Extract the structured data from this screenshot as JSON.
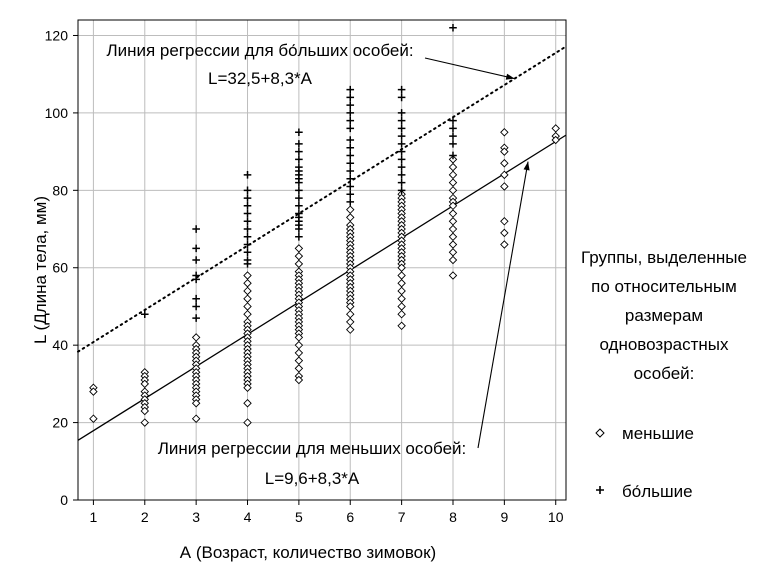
{
  "chart_data": {
    "type": "scatter",
    "xlabel": "А  (Возраст, количество зимовок)",
    "ylabel": "L (Длина тела, мм)",
    "x_ticks": [
      1,
      2,
      3,
      4,
      5,
      6,
      7,
      8,
      9,
      10
    ],
    "y_ticks": [
      0,
      20,
      40,
      60,
      80,
      100,
      120
    ],
    "xlim": [
      0.7,
      10.2
    ],
    "ylim": [
      0,
      124
    ],
    "grid": true,
    "legend": {
      "position": "right",
      "title_lines": [
        "Группы, выделенные",
        "по относительным",
        "размерам",
        "одновозрастных",
        "особей:"
      ],
      "items": [
        {
          "symbol": "diamond",
          "label": "меньшие"
        },
        {
          "symbol": "plus",
          "label": "бо́льшие"
        }
      ]
    },
    "regression_lines": [
      {
        "group": "бо́льшие",
        "intercept": 32.5,
        "slope": 8.3,
        "style": "dotted"
      },
      {
        "group": "меньшие",
        "intercept": 9.6,
        "slope": 8.3,
        "style": "solid"
      }
    ],
    "annotations": [
      {
        "lines": [
          "Линия регрессии для бо́льших особей:",
          "L=32,5+8,3*A"
        ],
        "points_to_x": 9.2
      },
      {
        "lines": [
          "Линия регрессии для меньших особей:",
          "L=9,6+8,3*A"
        ],
        "points_to_x": 9.5
      }
    ],
    "series": [
      {
        "name": "меньшие",
        "symbol": "diamond",
        "points": [
          [
            1,
            29
          ],
          [
            1,
            28
          ],
          [
            1,
            21
          ],
          [
            2,
            33
          ],
          [
            2,
            32
          ],
          [
            2,
            31
          ],
          [
            2,
            30
          ],
          [
            2,
            28
          ],
          [
            2,
            27
          ],
          [
            2,
            26
          ],
          [
            2,
            25
          ],
          [
            2,
            24
          ],
          [
            2,
            23
          ],
          [
            2,
            20
          ],
          [
            3,
            42
          ],
          [
            3,
            40
          ],
          [
            3,
            39
          ],
          [
            3,
            38
          ],
          [
            3,
            37
          ],
          [
            3,
            36
          ],
          [
            3,
            35
          ],
          [
            3,
            34
          ],
          [
            3,
            33
          ],
          [
            3,
            32
          ],
          [
            3,
            31
          ],
          [
            3,
            30
          ],
          [
            3,
            29
          ],
          [
            3,
            28
          ],
          [
            3,
            27
          ],
          [
            3,
            26
          ],
          [
            3,
            25
          ],
          [
            3,
            21
          ],
          [
            4,
            58
          ],
          [
            4,
            56
          ],
          [
            4,
            54
          ],
          [
            4,
            52
          ],
          [
            4,
            50
          ],
          [
            4,
            48
          ],
          [
            4,
            46
          ],
          [
            4,
            45
          ],
          [
            4,
            44
          ],
          [
            4,
            43
          ],
          [
            4,
            42
          ],
          [
            4,
            41
          ],
          [
            4,
            40
          ],
          [
            4,
            39
          ],
          [
            4,
            38
          ],
          [
            4,
            37
          ],
          [
            4,
            36
          ],
          [
            4,
            35
          ],
          [
            4,
            34
          ],
          [
            4,
            33
          ],
          [
            4,
            32
          ],
          [
            4,
            31
          ],
          [
            4,
            30
          ],
          [
            4,
            29
          ],
          [
            4,
            25
          ],
          [
            4,
            20
          ],
          [
            5,
            65
          ],
          [
            5,
            63
          ],
          [
            5,
            61
          ],
          [
            5,
            59
          ],
          [
            5,
            58
          ],
          [
            5,
            57
          ],
          [
            5,
            56
          ],
          [
            5,
            55
          ],
          [
            5,
            54
          ],
          [
            5,
            53
          ],
          [
            5,
            52
          ],
          [
            5,
            51
          ],
          [
            5,
            50
          ],
          [
            5,
            49
          ],
          [
            5,
            48
          ],
          [
            5,
            47
          ],
          [
            5,
            46
          ],
          [
            5,
            45
          ],
          [
            5,
            44
          ],
          [
            5,
            43
          ],
          [
            5,
            42
          ],
          [
            5,
            40
          ],
          [
            5,
            38
          ],
          [
            5,
            36
          ],
          [
            5,
            34
          ],
          [
            5,
            32
          ],
          [
            5,
            31
          ],
          [
            6,
            75
          ],
          [
            6,
            73
          ],
          [
            6,
            71
          ],
          [
            6,
            70
          ],
          [
            6,
            69
          ],
          [
            6,
            68
          ],
          [
            6,
            67
          ],
          [
            6,
            66
          ],
          [
            6,
            65
          ],
          [
            6,
            64
          ],
          [
            6,
            63
          ],
          [
            6,
            62
          ],
          [
            6,
            61
          ],
          [
            6,
            60
          ],
          [
            6,
            59
          ],
          [
            6,
            58
          ],
          [
            6,
            57
          ],
          [
            6,
            56
          ],
          [
            6,
            55
          ],
          [
            6,
            54
          ],
          [
            6,
            53
          ],
          [
            6,
            52
          ],
          [
            6,
            51
          ],
          [
            6,
            50
          ],
          [
            6,
            48
          ],
          [
            6,
            46
          ],
          [
            6,
            44
          ],
          [
            7,
            79
          ],
          [
            7,
            78
          ],
          [
            7,
            77
          ],
          [
            7,
            76
          ],
          [
            7,
            75
          ],
          [
            7,
            74
          ],
          [
            7,
            73
          ],
          [
            7,
            72
          ],
          [
            7,
            71
          ],
          [
            7,
            70
          ],
          [
            7,
            69
          ],
          [
            7,
            68
          ],
          [
            7,
            67
          ],
          [
            7,
            66
          ],
          [
            7,
            65
          ],
          [
            7,
            64
          ],
          [
            7,
            63
          ],
          [
            7,
            62
          ],
          [
            7,
            61
          ],
          [
            7,
            60
          ],
          [
            7,
            58
          ],
          [
            7,
            56
          ],
          [
            7,
            54
          ],
          [
            7,
            52
          ],
          [
            7,
            50
          ],
          [
            7,
            48
          ],
          [
            7,
            45
          ],
          [
            8,
            88
          ],
          [
            8,
            86
          ],
          [
            8,
            84
          ],
          [
            8,
            82
          ],
          [
            8,
            80
          ],
          [
            8,
            78
          ],
          [
            8,
            77
          ],
          [
            8,
            76
          ],
          [
            8,
            74
          ],
          [
            8,
            72
          ],
          [
            8,
            70
          ],
          [
            8,
            68
          ],
          [
            8,
            66
          ],
          [
            8,
            64
          ],
          [
            8,
            62
          ],
          [
            8,
            58
          ],
          [
            9,
            95
          ],
          [
            9,
            91
          ],
          [
            9,
            90
          ],
          [
            9,
            87
          ],
          [
            9,
            84
          ],
          [
            9,
            81
          ],
          [
            9,
            72
          ],
          [
            9,
            69
          ],
          [
            9,
            66
          ],
          [
            10,
            96
          ],
          [
            10,
            94
          ],
          [
            10,
            93
          ]
        ]
      },
      {
        "name": "бо́льшие",
        "symbol": "plus",
        "points": [
          [
            2,
            48
          ],
          [
            3,
            70
          ],
          [
            3,
            65
          ],
          [
            3,
            62
          ],
          [
            3,
            58
          ],
          [
            3,
            57
          ],
          [
            3,
            52
          ],
          [
            3,
            50
          ],
          [
            3,
            47
          ],
          [
            4,
            84
          ],
          [
            4,
            80
          ],
          [
            4,
            78
          ],
          [
            4,
            76
          ],
          [
            4,
            74
          ],
          [
            4,
            72
          ],
          [
            4,
            70
          ],
          [
            4,
            68
          ],
          [
            4,
            66
          ],
          [
            4,
            64
          ],
          [
            4,
            62
          ],
          [
            4,
            61
          ],
          [
            5,
            95
          ],
          [
            5,
            92
          ],
          [
            5,
            90
          ],
          [
            5,
            88
          ],
          [
            5,
            86
          ],
          [
            5,
            85
          ],
          [
            5,
            84
          ],
          [
            5,
            83
          ],
          [
            5,
            82
          ],
          [
            5,
            80
          ],
          [
            5,
            78
          ],
          [
            5,
            76
          ],
          [
            5,
            74
          ],
          [
            5,
            73
          ],
          [
            5,
            72
          ],
          [
            5,
            71
          ],
          [
            5,
            70
          ],
          [
            5,
            68
          ],
          [
            6,
            106
          ],
          [
            6,
            104
          ],
          [
            6,
            102
          ],
          [
            6,
            100
          ],
          [
            6,
            98
          ],
          [
            6,
            96
          ],
          [
            6,
            93
          ],
          [
            6,
            91
          ],
          [
            6,
            89
          ],
          [
            6,
            87
          ],
          [
            6,
            85
          ],
          [
            6,
            83
          ],
          [
            6,
            81
          ],
          [
            6,
            79
          ],
          [
            6,
            77
          ],
          [
            7,
            106
          ],
          [
            7,
            104
          ],
          [
            7,
            100
          ],
          [
            7,
            98
          ],
          [
            7,
            96
          ],
          [
            7,
            94
          ],
          [
            7,
            92
          ],
          [
            7,
            90
          ],
          [
            7,
            88
          ],
          [
            7,
            86
          ],
          [
            7,
            84
          ],
          [
            7,
            82
          ],
          [
            7,
            80
          ],
          [
            8,
            122
          ],
          [
            8,
            98
          ],
          [
            8,
            96
          ],
          [
            8,
            94
          ],
          [
            8,
            92
          ],
          [
            8,
            89
          ]
        ]
      }
    ]
  }
}
